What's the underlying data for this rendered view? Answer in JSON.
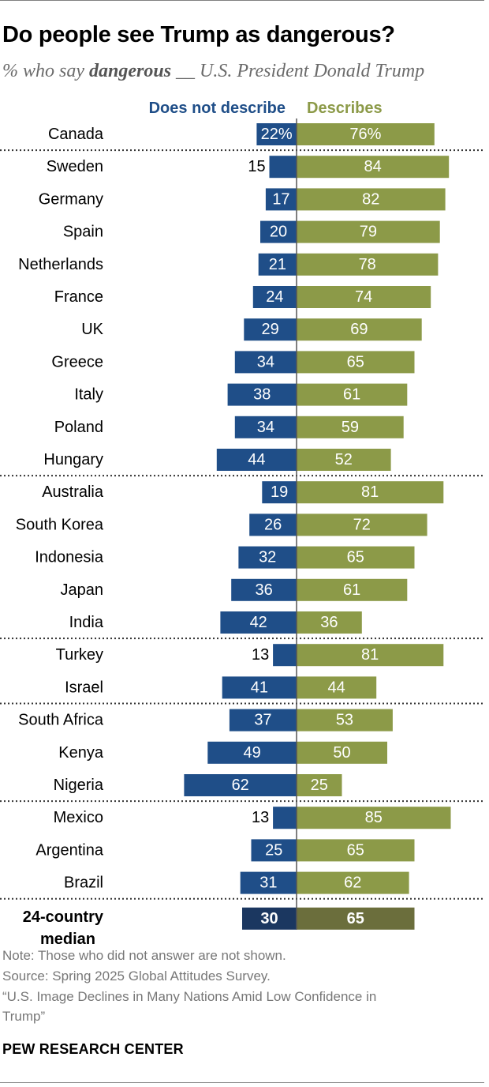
{
  "header": {
    "title": "Do people see Trump as dangerous?",
    "subtitle_prefix": "% who say ",
    "subtitle_emph": "dangerous",
    "subtitle_suffix": " __ U.S. President Donald Trump"
  },
  "chart_data": {
    "type": "bar",
    "orientation": "diverging-horizontal",
    "categories": [
      "Canada",
      "Sweden",
      "Germany",
      "Spain",
      "Netherlands",
      "France",
      "UK",
      "Greece",
      "Italy",
      "Poland",
      "Hungary",
      "Australia",
      "South Korea",
      "Indonesia",
      "Japan",
      "India",
      "Turkey",
      "Israel",
      "South Africa",
      "Kenya",
      "Nigeria",
      "Mexico",
      "Argentina",
      "Brazil"
    ],
    "series": [
      {
        "name": "Does not describe",
        "color": "#1f4e88",
        "values": [
          22,
          15,
          17,
          20,
          21,
          24,
          29,
          34,
          38,
          34,
          44,
          19,
          26,
          32,
          36,
          42,
          13,
          41,
          37,
          49,
          62,
          13,
          25,
          31
        ],
        "labels": [
          "22%",
          "15",
          "17",
          "20",
          "21",
          "24",
          "29",
          "34",
          "38",
          "34",
          "44",
          "19",
          "26",
          "32",
          "36",
          "42",
          "13",
          "41",
          "37",
          "49",
          "62",
          "13",
          "25",
          "31"
        ]
      },
      {
        "name": "Describes",
        "color": "#8c9a48",
        "values": [
          76,
          84,
          82,
          79,
          78,
          74,
          69,
          65,
          61,
          59,
          52,
          81,
          72,
          65,
          61,
          36,
          81,
          44,
          53,
          50,
          25,
          85,
          65,
          62
        ],
        "labels": [
          "76%",
          "84",
          "82",
          "79",
          "78",
          "74",
          "69",
          "65",
          "61",
          "59",
          "52",
          "81",
          "72",
          "65",
          "61",
          "36",
          "81",
          "44",
          "53",
          "50",
          "25",
          "85",
          "65",
          "62"
        ]
      }
    ],
    "median": {
      "label_line1": "24-country",
      "label_line2": "median",
      "does_not_describe": 30,
      "describes": 65,
      "does_not_describe_label": "30",
      "describes_label": "65",
      "colors": {
        "does_not_describe": "#1b3760",
        "describes": "#6b6e3c"
      }
    },
    "group_breaks_after": [
      "Canada",
      "Hungary",
      "India",
      "Israel",
      "Nigeria",
      "Brazil"
    ],
    "label_color_on_bar": "#ffffff",
    "label_color_off_bar": "#000000"
  },
  "footer": {
    "note": "Note: Those who did not answer are not shown.",
    "source": "Source: Spring 2025 Global Attitudes Survey.",
    "report_line1": "“U.S. Image Declines in Many Nations Amid Low Confidence in",
    "report_line2": "Trump”",
    "brand": "PEW RESEARCH CENTER"
  }
}
